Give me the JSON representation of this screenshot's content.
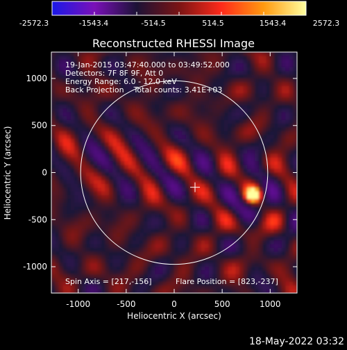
{
  "colorbar": {
    "tick_labels": [
      "-2572.3",
      "-1543.4",
      "-514.5",
      "514.5",
      "1543.4",
      "2572.3"
    ],
    "colormap": [
      "#1a19e8",
      "#7a10b8",
      "#1c1236",
      "#7a1414",
      "#ff2a1a",
      "#ff9a10",
      "#ffffa0"
    ]
  },
  "footer_timestamp": "18-May-2022 03:32",
  "chart_data": {
    "type": "heatmap",
    "title": "Reconstructed RHESSI Image",
    "xlabel": "Heliocentric X (arcsec)",
    "ylabel": "Heliocentric Y (arcsec)",
    "xlim": [
      -1280,
      1280
    ],
    "ylim": [
      -1280,
      1280
    ],
    "x_ticks": [
      -1000,
      -500,
      0,
      500,
      1000
    ],
    "y_ticks": [
      -1000,
      -500,
      0,
      500,
      1000
    ],
    "value_range": [
      -2572.3,
      2572.3
    ],
    "info_lines": [
      "19-Jan-2015 03:47:40.000 to 03:49:52.000",
      "Detectors: 7F 8F 9F, Att 0",
      "Energy Range: 6.0 - 12.0 keV",
      "Back Projection    Total counts: 3.41E+03"
    ],
    "spin_axis_label": "Spin Axis = [217,-156]",
    "flare_position_label": "Flare Position = [823,-237]",
    "sun_center": [
      0,
      0
    ],
    "solar_radius": 975,
    "spin_axis": [
      217,
      -156
    ],
    "flare_position": [
      823,
      -237
    ],
    "flare_peak_value": 2572.3
  }
}
